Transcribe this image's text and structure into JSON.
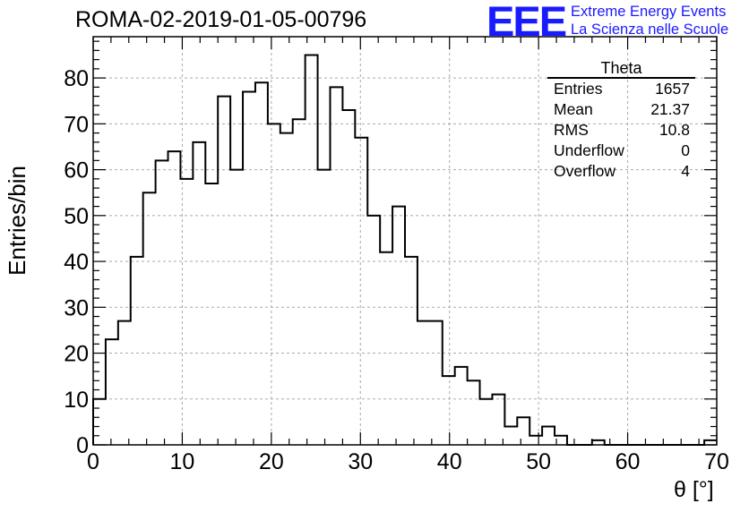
{
  "title": "ROMA-02-2019-01-05-00796",
  "logo": {
    "mark": "EEE",
    "line1": "Extreme Energy Events",
    "line2": "La Scienza nelle Scuole",
    "color": "#1a1aff"
  },
  "stats": {
    "title": "Theta",
    "rows": [
      {
        "label": "Entries",
        "value": "1657"
      },
      {
        "label": "Mean",
        "value": "21.37"
      },
      {
        "label": "RMS",
        "value": "10.8"
      },
      {
        "label": "Underflow",
        "value": "0"
      },
      {
        "label": "Overflow",
        "value": "4"
      }
    ]
  },
  "chart_data": {
    "type": "bar",
    "style": "histogram-step",
    "title": "ROMA-02-2019-01-05-00796",
    "xlabel": "θ [°]",
    "ylabel": "Entries/bin",
    "xlim": [
      0,
      70
    ],
    "ylim": [
      0,
      89
    ],
    "grid": true,
    "bin_width": 1.4,
    "x_ticks": [
      0,
      10,
      20,
      30,
      40,
      50,
      60,
      70
    ],
    "y_ticks": [
      0,
      10,
      20,
      30,
      40,
      50,
      60,
      70,
      80
    ],
    "values": [
      10,
      23,
      27,
      41,
      55,
      62,
      64,
      58,
      66,
      57,
      76,
      60,
      77,
      79,
      70,
      68,
      71,
      85,
      60,
      78,
      73,
      67,
      50,
      42,
      52,
      41,
      27,
      27,
      15,
      17,
      14,
      10,
      11,
      4,
      6,
      2,
      4,
      2,
      0,
      0,
      1,
      0,
      0,
      0,
      0,
      0,
      0,
      0,
      0,
      1
    ]
  }
}
